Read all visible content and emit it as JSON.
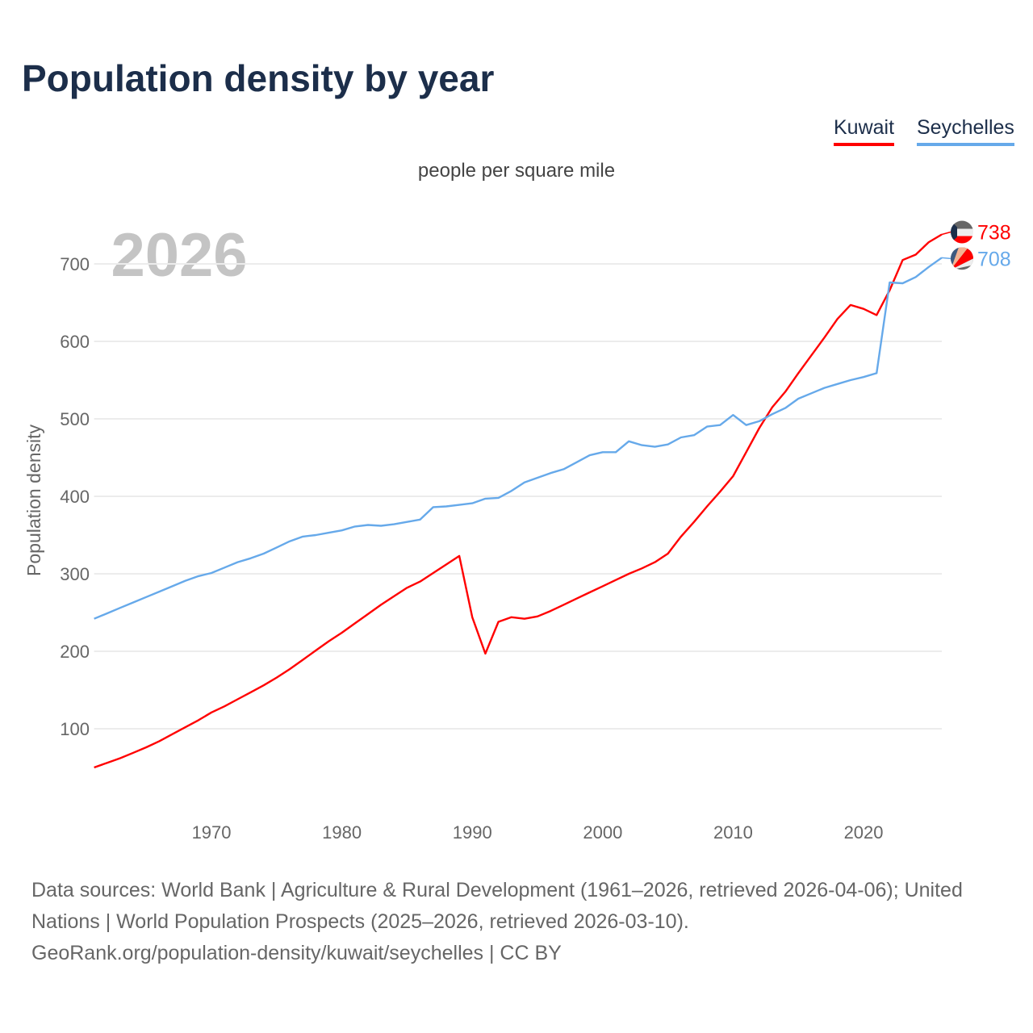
{
  "title": "Population density by year",
  "footer": {
    "sources": "Data sources: World Bank | Agriculture & Rural Development (1961–2026, retrieved 2026-04-06); United Nations | World Population Prospects (2025–2026, retrieved 2026-03-10).",
    "link": "GeoRank.org/population-density/kuwait/seychelles | CC BY"
  },
  "chart_data": {
    "type": "line",
    "title": "Population density by year",
    "subtitle": "people per square mile",
    "ylabel": "Population density",
    "xlabel": "",
    "year_watermark": "2026",
    "xlim": [
      1961,
      2026
    ],
    "ylim": [
      0,
      760
    ],
    "x_ticks": [
      1970,
      1980,
      1990,
      2000,
      2010,
      2020
    ],
    "y_ticks": [
      100,
      200,
      300,
      400,
      500,
      600,
      700
    ],
    "grid": true,
    "legend_position": "top-right",
    "x": [
      1961,
      1962,
      1963,
      1964,
      1965,
      1966,
      1967,
      1968,
      1969,
      1970,
      1971,
      1972,
      1973,
      1974,
      1975,
      1976,
      1977,
      1978,
      1979,
      1980,
      1981,
      1982,
      1983,
      1984,
      1985,
      1986,
      1987,
      1988,
      1989,
      1990,
      1991,
      1992,
      1993,
      1994,
      1995,
      1996,
      1997,
      1998,
      1999,
      2000,
      2001,
      2002,
      2003,
      2004,
      2005,
      2006,
      2007,
      2008,
      2009,
      2010,
      2011,
      2012,
      2013,
      2014,
      2015,
      2016,
      2017,
      2018,
      2019,
      2020,
      2021,
      2022,
      2023,
      2024,
      2025,
      2026
    ],
    "series": [
      {
        "name": "Kuwait",
        "color": "#ff0000",
        "end_label": "738",
        "flag": "kuwait-flag",
        "values": [
          50,
          56,
          62,
          69,
          76,
          84,
          93,
          102,
          111,
          121,
          129,
          138,
          147,
          156,
          166,
          177,
          189,
          201,
          213,
          224,
          236,
          248,
          260,
          271,
          282,
          290,
          301,
          312,
          323,
          244,
          197,
          238,
          244,
          242,
          245,
          252,
          260,
          268,
          276,
          284,
          292,
          300,
          307,
          315,
          326,
          348,
          367,
          387,
          406,
          426,
          457,
          488,
          515,
          535,
          559,
          582,
          605,
          629,
          647,
          642,
          634,
          666,
          705,
          712,
          728,
          738
        ]
      },
      {
        "name": "Seychelles",
        "color": "#66a9ea",
        "end_label": "708",
        "flag": "seychelles-flag",
        "values": [
          242,
          249,
          256,
          263,
          270,
          277,
          284,
          291,
          297,
          301,
          308,
          315,
          320,
          326,
          334,
          342,
          348,
          350,
          353,
          356,
          361,
          363,
          362,
          364,
          367,
          370,
          386,
          387,
          389,
          391,
          397,
          398,
          407,
          418,
          424,
          430,
          435,
          444,
          453,
          457,
          457,
          471,
          466,
          464,
          467,
          476,
          479,
          490,
          492,
          505,
          492,
          497,
          506,
          514,
          526,
          533,
          540,
          545,
          550,
          554,
          559,
          676,
          675,
          683,
          696,
          708
        ]
      }
    ]
  }
}
